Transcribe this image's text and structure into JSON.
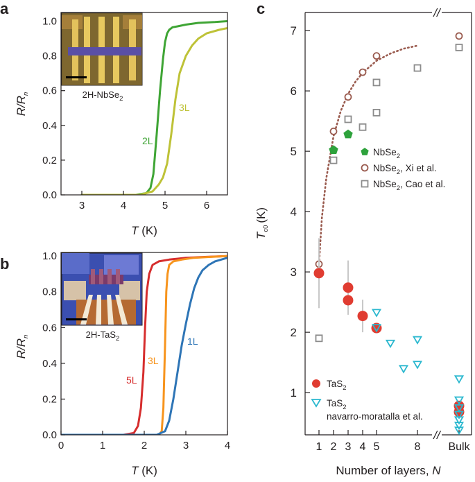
{
  "chart_data": [
    {
      "panel": "a",
      "type": "line",
      "xlabel": "T (K)",
      "xlabel_var": "T",
      "xlabel_unit": "(K)",
      "ylabel": "R/R_n",
      "ylabel_main": "R/R",
      "ylabel_sub": "n",
      "xlim": [
        2.5,
        6.5
      ],
      "ylim": [
        0,
        1.05
      ],
      "xticks": [
        "3",
        "4",
        "5",
        "6"
      ],
      "yticks": [
        "0.0",
        "0.2",
        "0.4",
        "0.6",
        "0.8",
        "1.0"
      ],
      "inset_label": "2H-NbSe",
      "inset_label_sub": "2",
      "series": [
        {
          "name": "2L",
          "color": "#3fa535",
          "x": [
            3.0,
            4.3,
            4.55,
            4.65,
            4.72,
            4.8,
            4.88,
            4.95,
            5.0,
            5.05,
            5.1,
            5.18,
            5.3,
            5.5,
            5.8,
            6.2,
            6.5
          ],
          "y": [
            0.0,
            0.0,
            0.01,
            0.04,
            0.12,
            0.35,
            0.6,
            0.78,
            0.88,
            0.93,
            0.95,
            0.965,
            0.97,
            0.98,
            0.99,
            0.995,
            1.0
          ]
        },
        {
          "name": "3L",
          "color": "#bec237",
          "x": [
            3.0,
            4.4,
            4.7,
            4.85,
            4.95,
            5.05,
            5.15,
            5.25,
            5.35,
            5.5,
            5.65,
            5.8,
            6.0,
            6.3,
            6.5
          ],
          "y": [
            0.0,
            0.0,
            0.02,
            0.06,
            0.1,
            0.18,
            0.35,
            0.55,
            0.7,
            0.8,
            0.86,
            0.9,
            0.93,
            0.95,
            0.96
          ]
        }
      ]
    },
    {
      "panel": "b",
      "type": "line",
      "xlabel": "T (K)",
      "xlabel_var": "T",
      "xlabel_unit": "(K)",
      "ylabel": "R/R_n",
      "ylabel_main": "R/R",
      "ylabel_sub": "n",
      "xlim": [
        0,
        4
      ],
      "ylim": [
        0,
        1.02
      ],
      "xticks": [
        "0",
        "1",
        "2",
        "3",
        "4"
      ],
      "yticks": [
        "0.0",
        "0.2",
        "0.4",
        "0.6",
        "0.8",
        "1.0"
      ],
      "inset_label": "2H-TaS",
      "inset_label_sub": "2",
      "series": [
        {
          "name": "5L",
          "color": "#d62d2d",
          "x": [
            0.0,
            1.5,
            1.75,
            1.85,
            1.92,
            1.98,
            2.02,
            2.06,
            2.12,
            2.2,
            2.35,
            2.6,
            3.0,
            3.5,
            4.0
          ],
          "y": [
            0.0,
            0.0,
            0.01,
            0.05,
            0.15,
            0.35,
            0.6,
            0.8,
            0.9,
            0.95,
            0.97,
            0.98,
            0.99,
            0.995,
            1.0
          ]
        },
        {
          "name": "3L",
          "color": "#f7941d",
          "x": [
            0.0,
            2.2,
            2.35,
            2.42,
            2.46,
            2.5,
            2.53,
            2.56,
            2.6,
            2.7,
            2.9,
            3.2,
            3.6,
            4.0
          ],
          "y": [
            0.0,
            0.0,
            0.0,
            0.02,
            0.15,
            0.5,
            0.8,
            0.9,
            0.95,
            0.97,
            0.98,
            0.99,
            0.995,
            1.0
          ]
        },
        {
          "name": "1L",
          "color": "#2e75b6",
          "x": [
            0.0,
            2.3,
            2.5,
            2.6,
            2.7,
            2.8,
            2.9,
            3.0,
            3.1,
            3.2,
            3.3,
            3.4,
            3.55,
            3.7,
            3.85,
            4.0
          ],
          "y": [
            0.0,
            0.0,
            0.02,
            0.08,
            0.2,
            0.35,
            0.5,
            0.62,
            0.73,
            0.82,
            0.88,
            0.92,
            0.95,
            0.97,
            0.98,
            0.99
          ]
        }
      ]
    },
    {
      "panel": "c",
      "type": "scatter",
      "xlabel": "Number of layers, N",
      "xlabel_text": "Number of layers, ",
      "xlabel_var": "N",
      "ylabel": "T_c0 (K)",
      "ylabel_main": "T",
      "ylabel_sub": "c0",
      "ylabel_unit": "(K)",
      "ylim": [
        0.3,
        7.3
      ],
      "xticks": [
        "1",
        "2",
        "3",
        "4",
        "5",
        "8",
        "Bulk"
      ],
      "xtick_values": [
        1,
        2,
        3,
        4,
        5,
        8,
        "Bulk"
      ],
      "yticks": [
        "1",
        "2",
        "3",
        "4",
        "5",
        "6",
        "7"
      ],
      "axis_break": "//",
      "series": [
        {
          "name": "NbSe2",
          "label": "NbSe",
          "sub": "2",
          "suffix": "",
          "marker": "pentagon",
          "color": "#2ea23c",
          "points": [
            [
              2,
              5.02
            ],
            [
              3,
              5.28
            ]
          ]
        },
        {
          "name": "NbSe2, Xi et al.",
          "label": "NbSe",
          "sub": "2",
          "suffix": ", Xi et al.",
          "marker": "circle-open",
          "color": "#9a5b4f",
          "points": [
            [
              1,
              3.13
            ],
            [
              2,
              5.33
            ],
            [
              3,
              5.9
            ],
            [
              4,
              6.31
            ],
            [
              5,
              6.58
            ],
            [
              "Bulk",
              6.91
            ]
          ]
        },
        {
          "name": "NbSe2, Cao et al.",
          "label": "NbSe",
          "sub": "2",
          "suffix": ", Cao et al.",
          "marker": "square-open",
          "color": "#8c8c8c",
          "points": [
            [
              1,
              1.9
            ],
            [
              2,
              4.85
            ],
            [
              3,
              5.53
            ],
            [
              4,
              5.4
            ],
            [
              5,
              5.64
            ],
            [
              5,
              6.14
            ],
            [
              8,
              6.38
            ],
            [
              "Bulk",
              6.72
            ]
          ]
        },
        {
          "name": "TaS2",
          "label": "TaS",
          "sub": "2",
          "suffix": "",
          "marker": "circle-filled",
          "color": "#e03c31",
          "points": [
            [
              1,
              2.98
            ],
            [
              3,
              2.74
            ],
            [
              3,
              2.53
            ],
            [
              4,
              2.27
            ],
            [
              5,
              2.07
            ],
            [
              "Bulk",
              0.78
            ],
            [
              "Bulk",
              0.68
            ]
          ],
          "errors": [
            0.58,
            0.45,
            0.0,
            0.27,
            0.0,
            0.0,
            0.0
          ]
        },
        {
          "name": "TaS2 navarro-moratalla et al.",
          "label": "TaS",
          "sub": "2",
          "suffix": "",
          "suffix2": "navarro-moratalla et al.",
          "marker": "triangle-down-open",
          "color": "#2bb8cf",
          "points": [
            [
              5,
              2.33
            ],
            [
              5,
              2.08
            ],
            [
              6,
              1.82
            ],
            [
              7,
              1.4
            ],
            [
              8,
              1.88
            ],
            [
              8,
              1.47
            ],
            [
              "Bulk",
              1.23
            ],
            [
              "Bulk",
              0.88
            ],
            [
              "Bulk",
              0.75
            ],
            [
              "Bulk",
              0.64
            ],
            [
              "Bulk",
              0.55
            ],
            [
              "Bulk",
              0.46
            ],
            [
              "Bulk",
              0.38
            ]
          ]
        }
      ],
      "fit_curve": {
        "style": "dotted",
        "color": "#9a5b4f",
        "x": [
          1.0,
          1.2,
          1.5,
          2.0,
          2.5,
          3.0,
          3.5,
          4.0,
          5.0,
          6.0,
          7.0,
          8.0
        ],
        "y": [
          3.13,
          3.9,
          4.55,
          5.25,
          5.67,
          5.95,
          6.15,
          6.3,
          6.5,
          6.62,
          6.7,
          6.75
        ]
      }
    }
  ],
  "panel_labels": [
    "a",
    "b",
    "c"
  ]
}
